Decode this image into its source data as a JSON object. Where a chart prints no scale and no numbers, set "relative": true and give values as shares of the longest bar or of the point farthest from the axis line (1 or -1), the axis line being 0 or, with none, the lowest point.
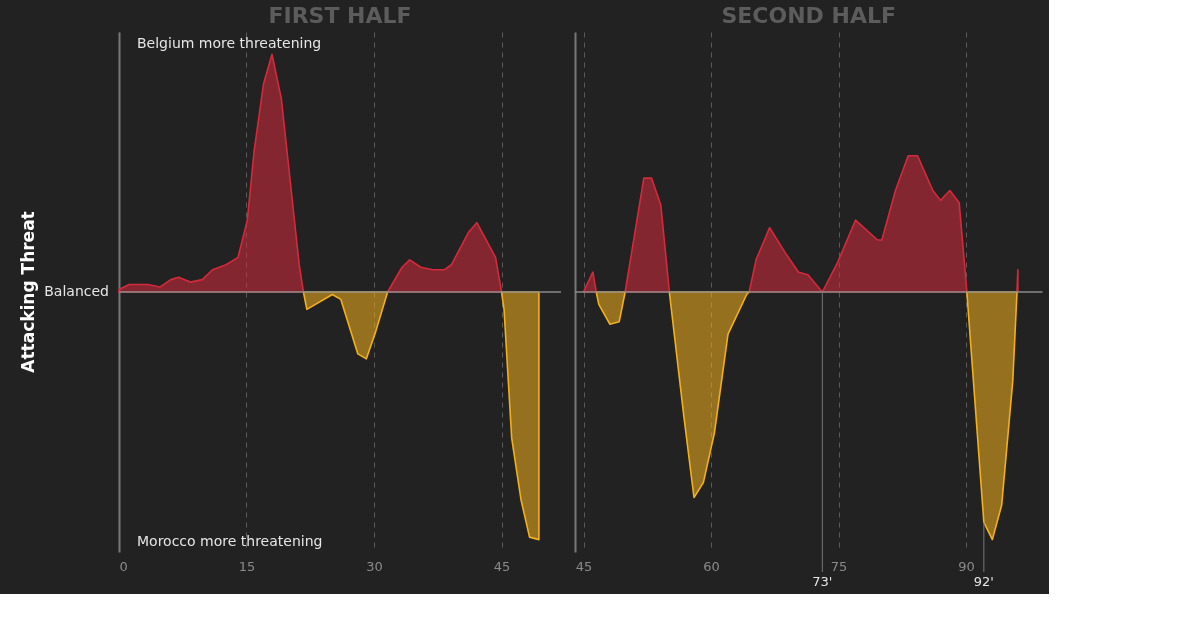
{
  "chart_data": [
    {
      "type": "area",
      "title": "FIRST HALF",
      "ylabel": "Attacking Threat",
      "relative": true,
      "xlim": [
        0,
        52
      ],
      "xticks": [
        0,
        15,
        30,
        45
      ],
      "grid": "x",
      "annotations": [
        "Belgium more threatening",
        "Morocco more threatening",
        "Balanced"
      ],
      "series": [
        {
          "color": "#d42a3c",
          "x": [
            0,
            1.2,
            3.4,
            4.8,
            6.1,
            7.0,
            8.4,
            9.8,
            11.0,
            12.6,
            14.0,
            15.1,
            15.9,
            17.0,
            18.0,
            19.1,
            20.2,
            21.2,
            21.7,
            26,
            31.6,
            33.3,
            34.2,
            35.5,
            36.9,
            38.3,
            39.1,
            41.1,
            42.1,
            44.3,
            45.0
          ],
          "values": [
            0.01,
            0.03,
            0.03,
            0.02,
            0.05,
            0.06,
            0.04,
            0.05,
            0.09,
            0.11,
            0.14,
            0.29,
            0.57,
            0.84,
            0.96,
            0.78,
            0.43,
            0.11,
            0,
            null,
            0,
            0.1,
            0.13,
            0.1,
            0.09,
            0.09,
            0.11,
            0.24,
            0.28,
            0.14,
            0
          ]
        },
        {
          "color": "#f2b01e",
          "x": [
            21.7,
            22.1,
            25.1,
            26.1,
            28.1,
            29.1,
            30.2,
            31.6,
            40,
            45.0,
            45.3,
            46.2,
            47.3,
            48.3,
            49.4
          ],
          "values": [
            0,
            -0.07,
            -0.01,
            -0.03,
            -0.25,
            -0.27,
            -0.16,
            0,
            null,
            0,
            -0.07,
            -0.59,
            -0.84,
            -0.99,
            -1.0
          ]
        }
      ]
    },
    {
      "type": "area",
      "title": "SECOND HALF",
      "relative": true,
      "xlim": [
        44,
        99
      ],
      "xticks": [
        45,
        60,
        75,
        90
      ],
      "grid": "x",
      "annotations": [
        {
          "text": "73'",
          "x": 73.1,
          "y": 0
        },
        {
          "text": "92'",
          "x": 92.1,
          "y": -0.93
        }
      ],
      "series": [
        {
          "color": "#d42a3c",
          "x": [
            45.0,
            46.1,
            46.5,
            48,
            49.9,
            52.1,
            53.0,
            54.1,
            55.1,
            60,
            64.5,
            65.3,
            66.9,
            68.7,
            70.3,
            71.4,
            73.1,
            74.9,
            77.0,
            79.6,
            80.1,
            81.7,
            83.2,
            84.3,
            86.1,
            87.0,
            88.1,
            89.2,
            90.1,
            93,
            96.0,
            96.1
          ],
          "values": [
            0,
            0.08,
            0,
            null,
            0,
            0.46,
            0.46,
            0.35,
            0,
            null,
            0,
            0.13,
            0.26,
            0.16,
            0.08,
            0.07,
            0,
            0.12,
            0.29,
            0.21,
            0.21,
            0.41,
            0.55,
            0.55,
            0.41,
            0.37,
            0.41,
            0.36,
            0,
            null,
            0,
            0.09
          ]
        },
        {
          "color": "#f2b01e",
          "x": [
            46.5,
            46.8,
            48.1,
            49.2,
            49.9,
            52,
            55.1,
            56.8,
            58.0,
            59.1,
            60.4,
            62.0,
            64.2,
            64.5,
            80,
            90.1,
            92.1,
            93.1,
            94.2,
            95.5,
            96.0
          ],
          "values": [
            0,
            -0.05,
            -0.13,
            -0.12,
            0,
            null,
            0,
            -0.5,
            -0.83,
            -0.77,
            -0.57,
            -0.17,
            -0.01,
            0,
            null,
            0,
            -0.93,
            -1,
            -0.86,
            -0.36,
            0
          ]
        }
      ]
    }
  ]
}
